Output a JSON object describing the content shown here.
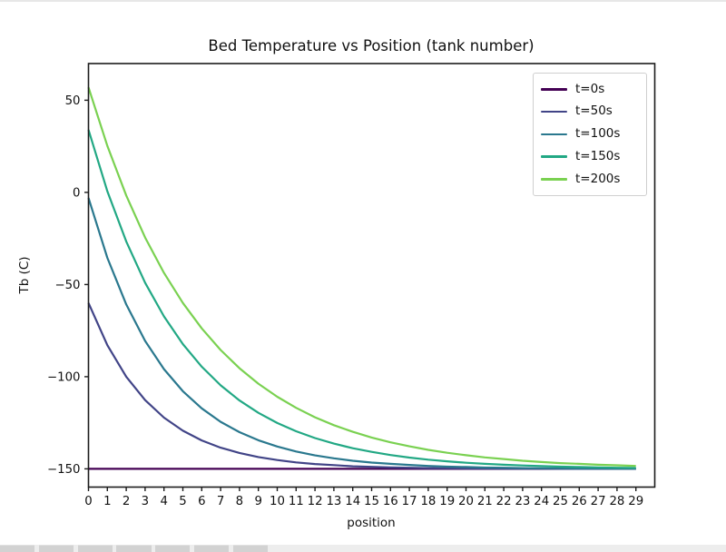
{
  "figure": {
    "title": "Bed Temperature vs Position (tank number)",
    "xlabel": "position",
    "ylabel": "Tb (C)"
  },
  "chart_data": {
    "type": "line",
    "title": "Bed Temperature vs Position (tank number)",
    "xlabel": "position",
    "ylabel": "Tb (C)",
    "grid": false,
    "xlim": [
      0,
      30
    ],
    "ylim": [
      -159.9,
      69.9
    ],
    "yticks": [
      50,
      0,
      -50,
      -100,
      -150
    ],
    "ytick_labels": [
      "50",
      "0",
      "−50",
      "−100",
      "−150"
    ],
    "xticks": [
      0,
      1,
      2,
      3,
      4,
      5,
      6,
      7,
      8,
      9,
      10,
      11,
      12,
      13,
      14,
      15,
      16,
      17,
      18,
      19,
      20,
      21,
      22,
      23,
      24,
      25,
      26,
      27,
      28,
      29
    ],
    "xtick_labels": [
      "0",
      "1",
      "2",
      "3",
      "4",
      "5",
      "6",
      "7",
      "8",
      "9",
      "10",
      "11",
      "12",
      "13",
      "14",
      "15",
      "16",
      "17",
      "18",
      "19",
      "20",
      "21",
      "22",
      "23",
      "24",
      "25",
      "26",
      "27",
      "28",
      "29"
    ],
    "x": [
      0,
      1,
      2,
      3,
      4,
      5,
      6,
      7,
      8,
      9,
      10,
      11,
      12,
      13,
      14,
      15,
      16,
      17,
      18,
      19,
      20,
      21,
      22,
      23,
      24,
      25,
      26,
      27,
      28,
      29
    ],
    "legend_position": "upper right",
    "series": [
      {
        "name": "t=0s",
        "color": "#440154",
        "values": [
          -150,
          -150,
          -150,
          -150,
          -150,
          -150,
          -150,
          -150,
          -150,
          -150,
          -150,
          -150,
          -150,
          -150,
          -150,
          -150,
          -150,
          -150,
          -150,
          -150,
          -150,
          -150,
          -150,
          -150,
          -150,
          -150,
          -150,
          -150,
          -150,
          -150
        ]
      },
      {
        "name": "t=50s",
        "color": "#414487",
        "values": [
          -60,
          -82.9,
          -100,
          -112.7,
          -122.2,
          -129.3,
          -134.6,
          -138.5,
          -141.4,
          -143.6,
          -145.2,
          -146.5,
          -147.4,
          -148,
          -148.6,
          -148.9,
          -149.2,
          -149.4,
          -149.6,
          -149.7,
          -149.8,
          -149.8,
          -149.9,
          -149.9,
          -149.9,
          -150,
          -150,
          -150,
          -150,
          -150
        ]
      },
      {
        "name": "t=100s",
        "color": "#2a788e",
        "values": [
          -3,
          -35.5,
          -60.8,
          -80.6,
          -95.9,
          -107.9,
          -117.2,
          -124.5,
          -130.1,
          -134.5,
          -137.9,
          -140.6,
          -142.7,
          -144.3,
          -145.6,
          -146.6,
          -147.3,
          -147.9,
          -148.4,
          -148.8,
          -149,
          -149.3,
          -149.4,
          -149.6,
          -149.7,
          -149.7,
          -149.8,
          -149.8,
          -149.9,
          -149.9
        ]
      },
      {
        "name": "t=150s",
        "color": "#22a884",
        "values": [
          34,
          0.6,
          -26.6,
          -49,
          -67.3,
          -82.3,
          -94.6,
          -104.7,
          -112.9,
          -119.6,
          -125.1,
          -129.6,
          -133.3,
          -136.3,
          -138.8,
          -140.8,
          -142.5,
          -143.9,
          -145,
          -145.9,
          -146.7,
          -147.3,
          -147.8,
          -148.2,
          -148.5,
          -148.8,
          -149,
          -149.2,
          -149.4,
          -149.5
        ]
      },
      {
        "name": "t=200s",
        "color": "#7ad151",
        "values": [
          57,
          25.2,
          -1.7,
          -24.5,
          -43.7,
          -60,
          -73.8,
          -85.5,
          -95.4,
          -103.8,
          -110.9,
          -116.9,
          -122,
          -126.3,
          -129.9,
          -133,
          -135.6,
          -137.8,
          -139.7,
          -141.3,
          -142.6,
          -143.8,
          -144.7,
          -145.6,
          -146.3,
          -146.9,
          -147.3,
          -147.8,
          -148.1,
          -148.4
        ]
      }
    ]
  },
  "taskbar": {
    "button_count": 7
  }
}
